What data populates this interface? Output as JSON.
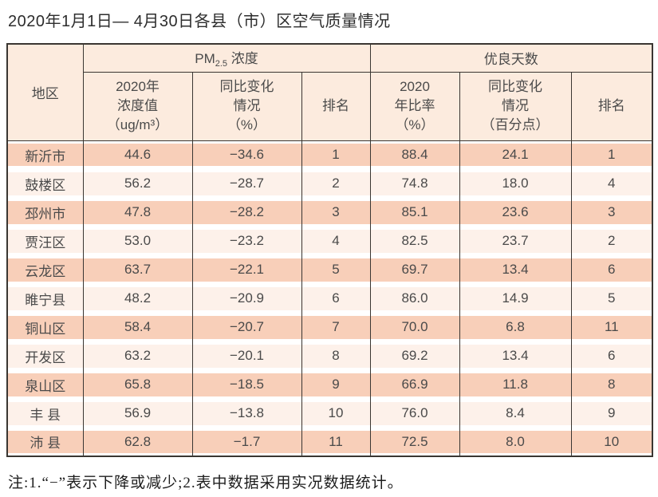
{
  "colors": {
    "row_dark": "#f8cfb9",
    "row_light": "#fdf1ea",
    "header_bg": "#fcebde",
    "border": "#3a3632",
    "text": "#4a4a4a"
  },
  "chart_data": {
    "type": "table",
    "title": "2020年1月1日— 4月30日各县（市）区空气质量情况",
    "header": {
      "region": "地区",
      "group_pm25": {
        "prefix": "PM",
        "sub": "2.5",
        "suffix": " 浓度"
      },
      "group_good_days": "优良天数",
      "sub_columns": [
        "2020年\n浓度值\n（ug/m³）",
        "同比变化\n情况\n（%）",
        "排名",
        "2020\n年比率\n（%）",
        "同比变化\n情况\n（百分点）",
        "排名"
      ]
    },
    "rows": [
      [
        "新沂市",
        "44.6",
        "−34.6",
        "1",
        "88.4",
        "24.1",
        "1"
      ],
      [
        "鼓楼区",
        "56.2",
        "−28.7",
        "2",
        "74.8",
        "18.0",
        "4"
      ],
      [
        "邳州市",
        "47.8",
        "−28.2",
        "3",
        "85.1",
        "23.6",
        "3"
      ],
      [
        "贾汪区",
        "53.0",
        "−23.2",
        "4",
        "82.5",
        "23.7",
        "2"
      ],
      [
        "云龙区",
        "63.7",
        "−22.1",
        "5",
        "69.7",
        "13.4",
        "6"
      ],
      [
        "睢宁县",
        "48.2",
        "−20.9",
        "6",
        "86.0",
        "14.9",
        "5"
      ],
      [
        "铜山区",
        "58.4",
        "−20.7",
        "7",
        "70.0",
        "6.8",
        "11"
      ],
      [
        "开发区",
        "63.2",
        "−20.1",
        "8",
        "69.2",
        "13.4",
        "6"
      ],
      [
        "泉山区",
        "65.8",
        "−18.5",
        "9",
        "66.9",
        "11.8",
        "8"
      ],
      [
        "丰 县",
        "56.9",
        "−13.8",
        "10",
        "76.0",
        "8.4",
        "9"
      ],
      [
        "沛 县",
        "62.8",
        "−1.7",
        "11",
        "72.5",
        "8.0",
        "10"
      ]
    ],
    "note": "注:1.“−”表示下降或减少;2.表中数据采用实况数据统计。"
  }
}
